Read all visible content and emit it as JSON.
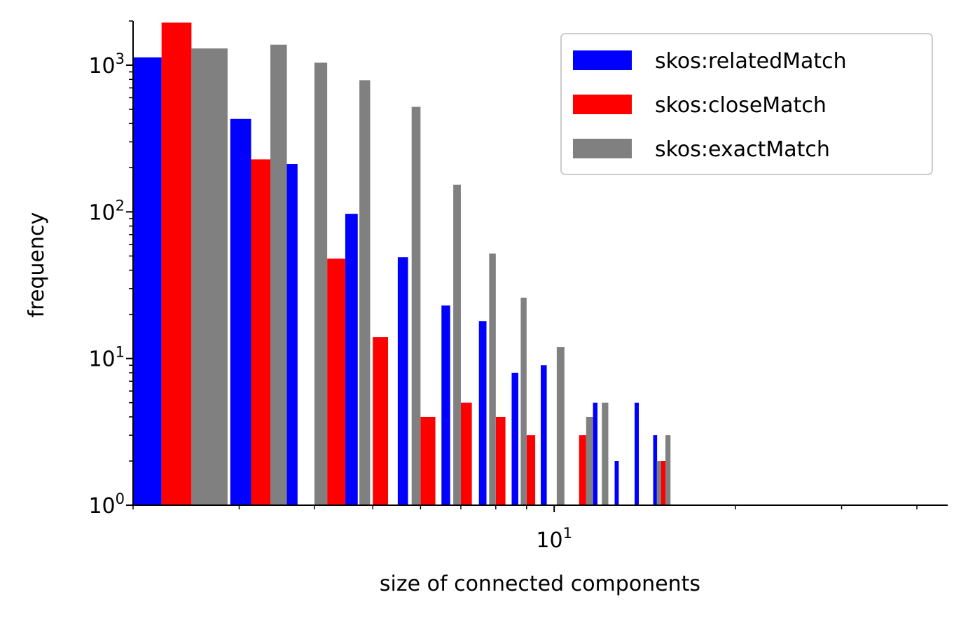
{
  "chart_data": {
    "type": "bar",
    "xscale": "log",
    "yscale": "log",
    "xlabel": "size of connected components",
    "ylabel": "frequency",
    "xlim": [
      2,
      45
    ],
    "ylim": [
      1,
      2000
    ],
    "grid": false,
    "legend_position": "top-right",
    "y_ticks": [
      {
        "value": 1,
        "base": "10",
        "exp": "0"
      },
      {
        "value": 10,
        "base": "10",
        "exp": "1"
      },
      {
        "value": 100,
        "base": "10",
        "exp": "2"
      },
      {
        "value": 1000,
        "base": "10",
        "exp": "3"
      }
    ],
    "x_ticks": [
      {
        "value": 10,
        "base": "10",
        "exp": "1"
      }
    ],
    "series": [
      {
        "name": "skos:relatedMatch",
        "color": "#0000ff",
        "bars": [
          {
            "x0": 2.0,
            "x1": 2.23,
            "y": 1130
          },
          {
            "x0": 2.9,
            "x1": 3.14,
            "y": 430
          },
          {
            "x0": 3.5,
            "x1": 3.75,
            "y": 212
          },
          {
            "x0": 4.5,
            "x1": 4.72,
            "y": 97
          },
          {
            "x0": 5.5,
            "x1": 5.72,
            "y": 49
          },
          {
            "x0": 6.5,
            "x1": 6.72,
            "y": 23
          },
          {
            "x0": 7.5,
            "x1": 7.72,
            "y": 18
          },
          {
            "x0": 8.5,
            "x1": 8.72,
            "y": 8
          },
          {
            "x0": 9.5,
            "x1": 9.72,
            "y": 9
          },
          {
            "x0": 11.6,
            "x1": 11.8,
            "y": 5
          },
          {
            "x0": 12.6,
            "x1": 12.8,
            "y": 2
          },
          {
            "x0": 13.6,
            "x1": 13.82,
            "y": 5
          },
          {
            "x0": 14.6,
            "x1": 14.82,
            "y": 3
          }
        ]
      },
      {
        "name": "skos:closeMatch",
        "color": "#ff0000",
        "bars": [
          {
            "x0": 2.23,
            "x1": 2.5,
            "y": 1950
          },
          {
            "x0": 3.14,
            "x1": 3.38,
            "y": 228
          },
          {
            "x0": 4.2,
            "x1": 4.5,
            "y": 48
          },
          {
            "x0": 5.0,
            "x1": 5.3,
            "y": 14
          },
          {
            "x0": 6.0,
            "x1": 6.35,
            "y": 4
          },
          {
            "x0": 7.0,
            "x1": 7.3,
            "y": 5
          },
          {
            "x0": 8.0,
            "x1": 8.3,
            "y": 4
          },
          {
            "x0": 9.0,
            "x1": 9.3,
            "y": 3
          },
          {
            "x0": 11.0,
            "x1": 11.3,
            "y": 3
          },
          {
            "x0": 15.0,
            "x1": 15.35,
            "y": 2
          }
        ]
      },
      {
        "name": "skos:exactMatch",
        "color": "#808080",
        "bars": [
          {
            "x0": 2.5,
            "x1": 2.87,
            "y": 1300
          },
          {
            "x0": 3.38,
            "x1": 3.6,
            "y": 1380
          },
          {
            "x0": 4.0,
            "x1": 4.2,
            "y": 1040
          },
          {
            "x0": 4.75,
            "x1": 4.95,
            "y": 790
          },
          {
            "x0": 5.8,
            "x1": 6.0,
            "y": 520
          },
          {
            "x0": 6.8,
            "x1": 7.0,
            "y": 153
          },
          {
            "x0": 7.8,
            "x1": 8.0,
            "y": 52
          },
          {
            "x0": 8.8,
            "x1": 9.0,
            "y": 26
          },
          {
            "x0": 10.1,
            "x1": 10.4,
            "y": 12
          },
          {
            "x0": 11.3,
            "x1": 11.6,
            "y": 4
          },
          {
            "x0": 12.0,
            "x1": 12.3,
            "y": 5
          },
          {
            "x0": 14.8,
            "x1": 15.05,
            "y": 2
          },
          {
            "x0": 15.3,
            "x1": 15.6,
            "y": 3
          }
        ]
      }
    ]
  }
}
